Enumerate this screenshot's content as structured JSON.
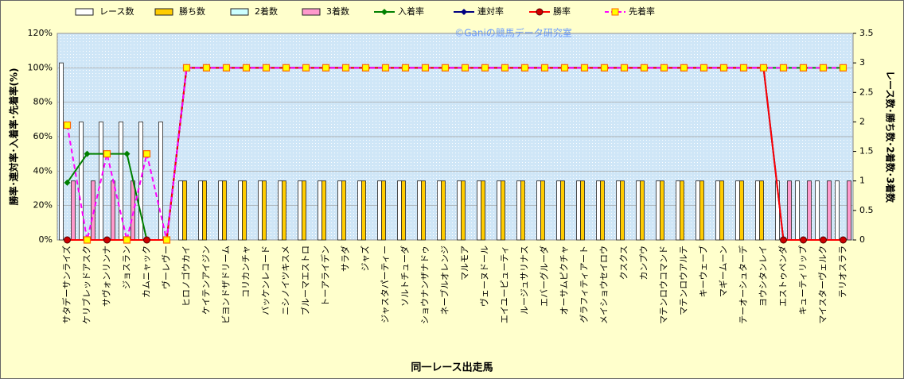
{
  "chart_data": {
    "type": "combo",
    "watermark": "©Ganiの競馬データ研究室",
    "xlabel": "同一レース出走馬",
    "ylabel": "勝率･連対率･入着率･先着率(%)",
    "y2label": "レース数･勝ち数･2着数･3着数",
    "categories": [
      "サタデーサンライズ",
      "ケリブレッドアスク",
      "サヴォンリンナ",
      "ジョスラン",
      "カムニャック",
      "ヴーレヴー",
      "ヒロノゴウカイ",
      "ケイテンアイジン",
      "ビヨンドザドリーム",
      "コリカンチャ",
      "バッケンレコード",
      "ニシノイツキスメ",
      "ブルーマエストロ",
      "トーアライデン",
      "サラダ",
      "ジャズ",
      "ジャスタパーティー",
      "ソルトチューダ",
      "ショウナンザナドゥ",
      "ネーブルオレンジ",
      "マルモア",
      "ヴェーヌドール",
      "エイユーピューティ",
      "ルージュサリナス",
      "エバーグルーダ",
      "オーサムピクチャ",
      "グラフィティアート",
      "メイショウセイロウ",
      "クスクス",
      "カンプウ",
      "マテンロウコマンド",
      "マテンロウアルテ",
      "キーウェーブ",
      "マギームーン",
      "テーオーシュターデ",
      "ヨウシタンレイ",
      "エストゥペンダ",
      "キューティリップ",
      "マイスターヴェルク",
      "テリオスララ"
    ],
    "ylim": [
      0,
      120
    ],
    "yticks": [
      {
        "value": 0,
        "label": "0%"
      },
      {
        "value": 20,
        "label": "20%"
      },
      {
        "value": 40,
        "label": "40%"
      },
      {
        "value": 60,
        "label": "60%"
      },
      {
        "value": 80,
        "label": "80%"
      },
      {
        "value": 100,
        "label": "100%"
      },
      {
        "value": 120,
        "label": "120%"
      }
    ],
    "y2lim": [
      0,
      3.5
    ],
    "y2ticks": [
      0,
      0.5,
      1,
      1.5,
      2,
      2.5,
      3,
      3.5
    ],
    "grid": true,
    "series": [
      {
        "name": "レース数",
        "type": "bar",
        "axis": "y2",
        "color": "#ffffff",
        "values": [
          3,
          2,
          2,
          2,
          2,
          2,
          1,
          1,
          1,
          1,
          1,
          1,
          1,
          1,
          1,
          1,
          1,
          1,
          1,
          1,
          1,
          1,
          1,
          1,
          1,
          1,
          1,
          1,
          1,
          1,
          1,
          1,
          1,
          1,
          1,
          1,
          1,
          1,
          1,
          1
        ]
      },
      {
        "name": "勝ち数",
        "type": "bar",
        "axis": "y2",
        "color": "#ffcc00",
        "values": [
          0,
          0,
          0,
          0,
          0,
          0,
          1,
          1,
          1,
          1,
          1,
          1,
          1,
          1,
          1,
          1,
          1,
          1,
          1,
          1,
          1,
          1,
          1,
          1,
          1,
          1,
          1,
          1,
          1,
          1,
          1,
          1,
          1,
          1,
          1,
          1,
          0,
          0,
          0,
          0
        ]
      },
      {
        "name": "2着数",
        "type": "bar",
        "axis": "y2",
        "color": "#ccffff",
        "values": [
          0,
          0,
          0,
          0,
          0,
          0,
          0,
          0,
          0,
          0,
          0,
          0,
          0,
          0,
          0,
          0,
          0,
          0,
          0,
          0,
          0,
          0,
          0,
          0,
          0,
          0,
          0,
          0,
          0,
          0,
          0,
          0,
          0,
          0,
          0,
          0,
          0,
          0,
          0,
          0
        ]
      },
      {
        "name": "3着数",
        "type": "bar",
        "axis": "y2",
        "color": "#ff99cc",
        "values": [
          1,
          1,
          1,
          1,
          0,
          0,
          0,
          0,
          0,
          0,
          0,
          0,
          0,
          0,
          0,
          0,
          0,
          0,
          0,
          0,
          0,
          0,
          0,
          0,
          0,
          0,
          0,
          0,
          0,
          0,
          0,
          0,
          0,
          0,
          0,
          0,
          1,
          1,
          1,
          1
        ]
      },
      {
        "name": "入着率",
        "type": "line",
        "color": "#008000",
        "marker": "diamond",
        "values": [
          33.3,
          50,
          50,
          50,
          0,
          0,
          100,
          100,
          100,
          100,
          100,
          100,
          100,
          100,
          100,
          100,
          100,
          100,
          100,
          100,
          100,
          100,
          100,
          100,
          100,
          100,
          100,
          100,
          100,
          100,
          100,
          100,
          100,
          100,
          100,
          100,
          100,
          100,
          100,
          100
        ]
      },
      {
        "name": "連対率",
        "type": "line",
        "color": "#000080",
        "marker": "diamond",
        "values": [
          0,
          0,
          0,
          0,
          0,
          0,
          100,
          100,
          100,
          100,
          100,
          100,
          100,
          100,
          100,
          100,
          100,
          100,
          100,
          100,
          100,
          100,
          100,
          100,
          100,
          100,
          100,
          100,
          100,
          100,
          100,
          100,
          100,
          100,
          100,
          100,
          0,
          0,
          0,
          0
        ]
      },
      {
        "name": "勝率",
        "type": "line",
        "color": "#ff0000",
        "marker": "circle",
        "values": [
          0,
          0,
          0,
          0,
          0,
          0,
          100,
          100,
          100,
          100,
          100,
          100,
          100,
          100,
          100,
          100,
          100,
          100,
          100,
          100,
          100,
          100,
          100,
          100,
          100,
          100,
          100,
          100,
          100,
          100,
          100,
          100,
          100,
          100,
          100,
          100,
          0,
          0,
          0,
          0
        ]
      },
      {
        "name": "先着率",
        "type": "line",
        "color": "#ff00ff",
        "marker": "square",
        "dashed": true,
        "values": [
          66.7,
          0,
          50,
          0,
          50,
          0,
          100,
          100,
          100,
          100,
          100,
          100,
          100,
          100,
          100,
          100,
          100,
          100,
          100,
          100,
          100,
          100,
          100,
          100,
          100,
          100,
          100,
          100,
          100,
          100,
          100,
          100,
          100,
          100,
          100,
          100,
          100,
          100,
          100,
          100
        ]
      }
    ]
  }
}
